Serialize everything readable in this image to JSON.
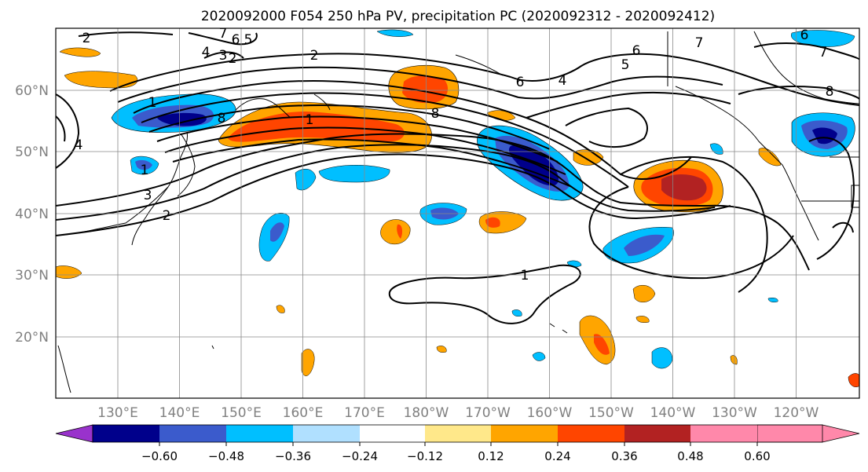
{
  "title": "2020092000 F054 250 hPa PV, precipitation PC (2020092312 - 2020092412)",
  "lat_labels": [
    "60°N",
    "50°N",
    "40°N",
    "30°N",
    "20°N"
  ],
  "lon_labels": [
    "130°E",
    "140°E",
    "150°E",
    "160°E",
    "170°E",
    "180°W",
    "170°W",
    "160°W",
    "150°W",
    "140°W",
    "130°W",
    "120°W"
  ],
  "colorbar": {
    "colors": [
      "#9932cc",
      "#00008b",
      "#3b5bcc",
      "#00bfff",
      "#b0e0ff",
      "#ffffff",
      "#ffe88a",
      "#ffa500",
      "#ff4500",
      "#b22222",
      "#ff88aa"
    ],
    "tick_labels": [
      "−0.60",
      "−0.48",
      "−0.36",
      "−0.24",
      "−0.12",
      "0.12",
      "0.24",
      "0.36",
      "0.48",
      "0.60"
    ]
  },
  "contour_labels": [
    "2",
    "2",
    "2",
    "2",
    "3",
    "3",
    "4",
    "4",
    "5",
    "6",
    "6",
    "7",
    "1",
    "1",
    "1",
    "8",
    "8",
    "6",
    "5",
    "4",
    "7",
    "8",
    "6",
    "7",
    "1"
  ]
}
